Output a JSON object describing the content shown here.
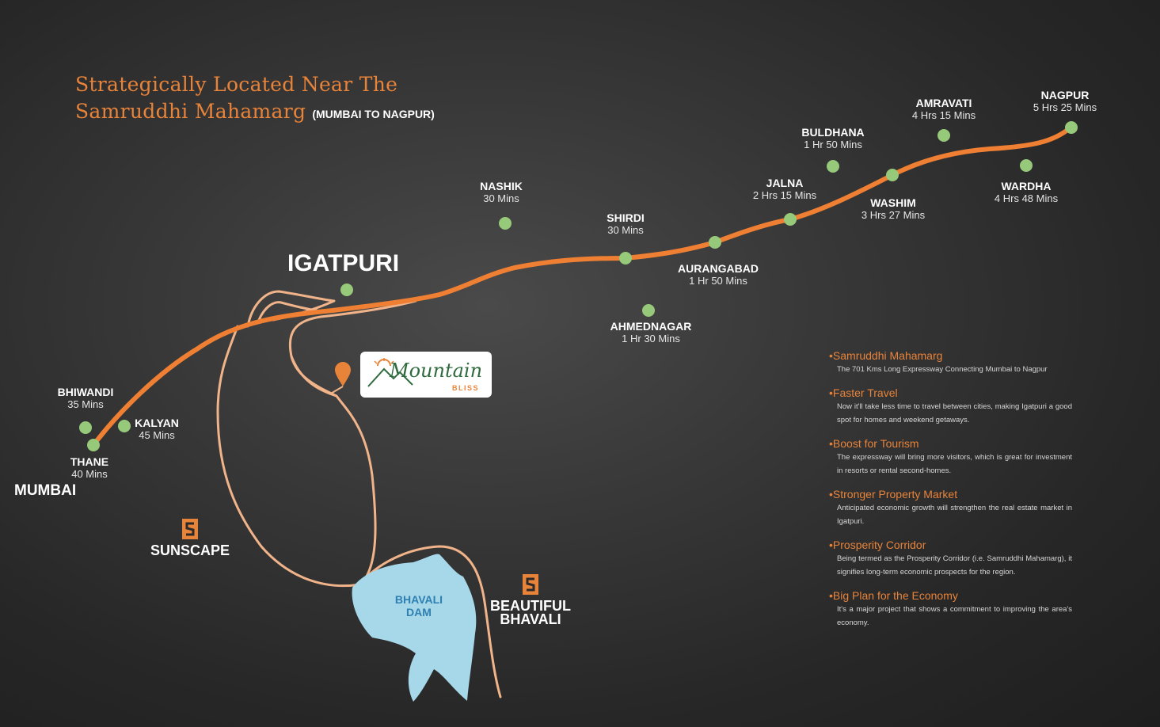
{
  "title": {
    "line1": "Strategically Located Near The",
    "line2": "Samruddhi Mahamarg",
    "subtitle": "(MUMBAI TO NAGPUR)"
  },
  "colors": {
    "accent": "#e8833a",
    "stop_dot": "#97c97a",
    "local_road": "#f1b48a",
    "dam_water": "#a6d8ea",
    "text": "#ffffff"
  },
  "big_places": {
    "mumbai": "MUMBAI",
    "igatpuri": "IGATPURI"
  },
  "places": {
    "bhiwandi": {
      "name": "BHIWANDI",
      "time": "35 Mins"
    },
    "kalyan": {
      "name": "KALYAN",
      "time": "45 Mins"
    },
    "thane": {
      "name": "THANE",
      "time": "40 Mins"
    },
    "nashik": {
      "name": "NASHIK",
      "time": "30 Mins"
    },
    "shirdi": {
      "name": "SHIRDI",
      "time": "30 Mins"
    },
    "ahmednagar": {
      "name": "AHMEDNAGAR",
      "time": "1 Hr 30 Mins"
    },
    "aurangabad": {
      "name": "AURANGABAD",
      "time": "1 Hr 50 Mins"
    },
    "jalna": {
      "name": "JALNA",
      "time": "2 Hrs 15 Mins"
    },
    "buldhana": {
      "name": "BULDHANA",
      "time": "1 Hr 50 Mins"
    },
    "washim": {
      "name": "WASHIM",
      "time": "3 Hrs 27 Mins"
    },
    "amravati": {
      "name": "AMRAVATI",
      "time": "4 Hrs 15 Mins"
    },
    "wardha": {
      "name": "WARDHA",
      "time": "4 Hrs 48 Mins"
    },
    "nagpur": {
      "name": "NAGPUR",
      "time": "5 Hrs 25 Mins"
    }
  },
  "brands": {
    "sunscape": "SUNSCAPE",
    "beautiful_line1": "BEAUTIFUL",
    "beautiful_line2": "BHAVALI"
  },
  "dam": {
    "line1": "BHAVALI",
    "line2": "DAM"
  },
  "logo": {
    "word": "Mountain",
    "sub": "BLISS"
  },
  "bullets": [
    {
      "title": "Samruddhi Mahamarg",
      "desc": "The 701 Kms Long Expressway Connecting Mumbai to Nagpur"
    },
    {
      "title": "Faster Travel",
      "desc": "Now it'll take less time to travel between cities, making Igatpuri a good spot for homes and weekend getaways."
    },
    {
      "title": "Boost for Tourism",
      "desc": "The expressway will bring more visitors, which is great for investment in resorts or rental second-homes."
    },
    {
      "title": "Stronger Property Market",
      "desc": "Anticipated economic growth will strengthen the real estate market in Igatpuri."
    },
    {
      "title": "Prosperity Corridor",
      "desc": "Being termed as the Prosperity Corridor (i.e. Samruddhi Mahamarg), it signifies long-term economic prospects for the region."
    },
    {
      "title": "Big Plan for the Economy",
      "desc": "It's a major project that shows a commitment to improving the area's economy."
    }
  ]
}
